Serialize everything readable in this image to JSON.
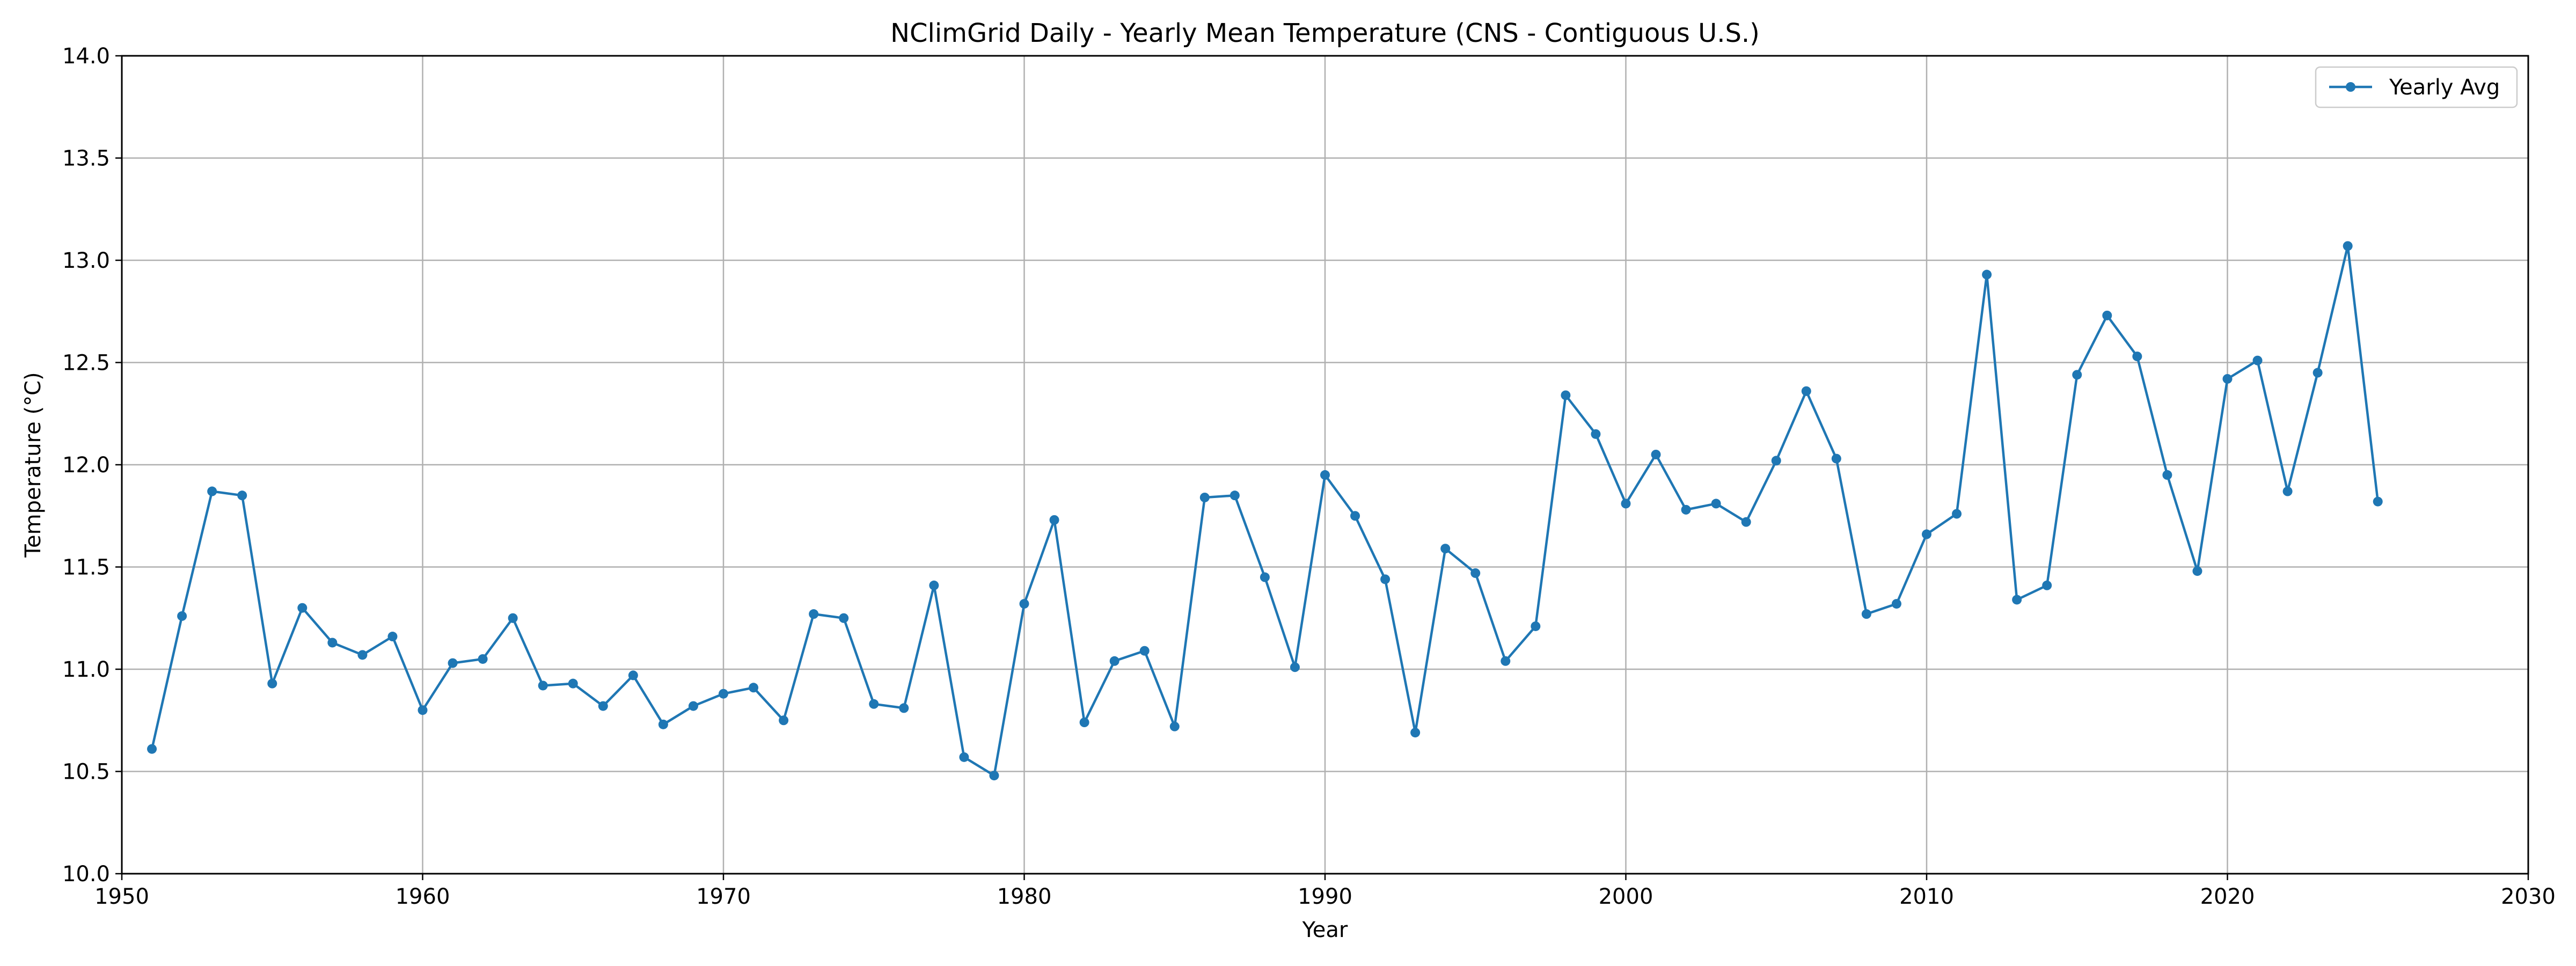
{
  "chart_data": {
    "type": "line",
    "title": "NClimGrid Daily - Yearly Mean Temperature (CNS - Contiguous U.S.)",
    "xlabel": "Year",
    "ylabel": "Temperature (°C)",
    "xlim": [
      1950,
      2030
    ],
    "ylim": [
      10.0,
      14.0
    ],
    "xticks": [
      1950,
      1960,
      1970,
      1980,
      1990,
      2000,
      2010,
      2020,
      2030
    ],
    "xtick_labels": [
      "1950",
      "1960",
      "1970",
      "1980",
      "1990",
      "2000",
      "2010",
      "2020",
      "2030"
    ],
    "yticks": [
      10.0,
      10.5,
      11.0,
      11.5,
      12.0,
      12.5,
      13.0,
      13.5,
      14.0
    ],
    "ytick_labels": [
      "10.0",
      "10.5",
      "11.0",
      "11.5",
      "12.0",
      "12.5",
      "13.0",
      "13.5",
      "14.0"
    ],
    "grid": true,
    "legend_position": "top-right",
    "series": [
      {
        "name": "Yearly Avg",
        "color": "#1f77b4",
        "marker": "circle",
        "x": [
          1951,
          1952,
          1953,
          1954,
          1955,
          1956,
          1957,
          1958,
          1959,
          1960,
          1961,
          1962,
          1963,
          1964,
          1965,
          1966,
          1967,
          1968,
          1969,
          1970,
          1971,
          1972,
          1973,
          1974,
          1975,
          1976,
          1977,
          1978,
          1979,
          1980,
          1981,
          1982,
          1983,
          1984,
          1985,
          1986,
          1987,
          1988,
          1989,
          1990,
          1991,
          1992,
          1993,
          1994,
          1995,
          1996,
          1997,
          1998,
          1999,
          2000,
          2001,
          2002,
          2003,
          2004,
          2005,
          2006,
          2007,
          2008,
          2009,
          2010,
          2011,
          2012,
          2013,
          2014,
          2015,
          2016,
          2017,
          2018,
          2019,
          2020,
          2021,
          2022,
          2023,
          2024,
          2025
        ],
        "values": [
          10.61,
          11.26,
          11.87,
          11.85,
          10.93,
          11.3,
          11.13,
          11.07,
          11.16,
          10.8,
          11.03,
          11.05,
          11.25,
          10.92,
          10.93,
          10.82,
          10.97,
          10.73,
          10.82,
          10.88,
          10.91,
          10.75,
          11.27,
          11.25,
          10.83,
          10.81,
          11.41,
          10.57,
          10.48,
          11.32,
          11.73,
          10.74,
          11.04,
          11.09,
          10.72,
          11.84,
          11.85,
          11.45,
          11.01,
          11.95,
          11.75,
          11.44,
          10.69,
          11.59,
          11.47,
          11.04,
          11.21,
          12.34,
          12.15,
          11.81,
          12.05,
          11.78,
          11.81,
          11.72,
          12.02,
          12.36,
          12.03,
          11.27,
          11.32,
          11.66,
          11.76,
          12.93,
          11.34,
          11.41,
          12.44,
          12.73,
          12.53,
          11.95,
          11.48,
          12.42,
          12.51,
          11.87,
          12.45,
          13.07,
          11.82
        ]
      }
    ]
  }
}
